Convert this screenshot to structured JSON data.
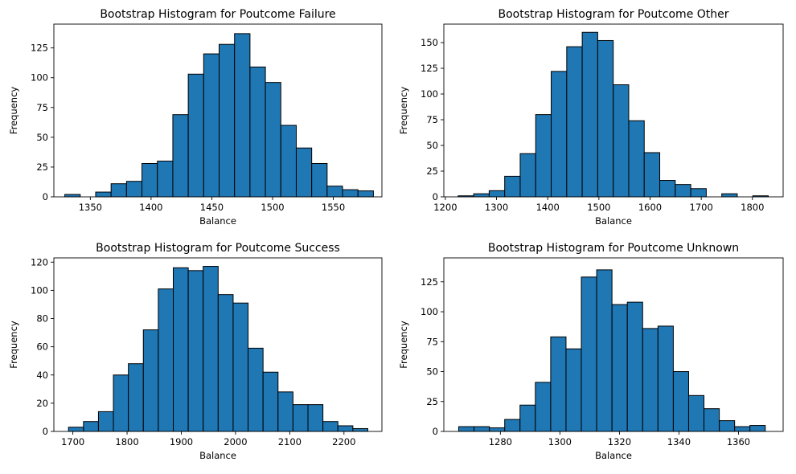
{
  "chart_data": [
    {
      "type": "bar",
      "title": "Bootstrap Histogram for Poutcome Failure",
      "xlabel": "Balance",
      "ylabel": "Frequency",
      "xlim": [
        1320,
        1590
      ],
      "ylim": [
        0,
        145
      ],
      "xticks": [
        1350,
        1400,
        1450,
        1500,
        1550
      ],
      "yticks": [
        0,
        25,
        50,
        75,
        100,
        125
      ],
      "bin_start": 1329,
      "bin_width": 12.7,
      "values": [
        2,
        0,
        4,
        11,
        13,
        28,
        30,
        69,
        103,
        120,
        128,
        137,
        109,
        96,
        60,
        41,
        28,
        9,
        6,
        5
      ],
      "bar_color": "#1f77b4"
    },
    {
      "type": "bar",
      "title": "Bootstrap Histogram for Poutcome Other",
      "xlabel": "Balance",
      "ylabel": "Frequency",
      "xlim": [
        1197,
        1860
      ],
      "ylim": [
        0,
        168
      ],
      "xticks": [
        1200,
        1300,
        1400,
        1500,
        1600,
        1700,
        1800
      ],
      "yticks": [
        0,
        25,
        50,
        75,
        100,
        125,
        150
      ],
      "bin_start": 1225,
      "bin_width": 30.3,
      "values": [
        1,
        3,
        6,
        20,
        42,
        80,
        122,
        146,
        160,
        152,
        109,
        74,
        43,
        16,
        12,
        8,
        0,
        3,
        0,
        1
      ],
      "bar_color": "#1f77b4"
    },
    {
      "type": "bar",
      "title": "Bootstrap Histogram for Poutcome Success",
      "xlabel": "Balance",
      "ylabel": "Frequency",
      "xlim": [
        1665,
        2270
      ],
      "ylim": [
        0,
        123
      ],
      "xticks": [
        1700,
        1800,
        1900,
        2000,
        2100,
        2200
      ],
      "yticks": [
        0,
        20,
        40,
        60,
        80,
        100,
        120
      ],
      "bin_start": 1692,
      "bin_width": 27.6,
      "values": [
        3,
        7,
        14,
        40,
        48,
        72,
        101,
        116,
        114,
        117,
        97,
        91,
        59,
        42,
        28,
        19,
        19,
        7,
        4,
        2
      ],
      "bar_color": "#1f77b4"
    },
    {
      "type": "bar",
      "title": "Bootstrap Histogram for Poutcome Unknown",
      "xlabel": "Balance",
      "ylabel": "Frequency",
      "xlim": [
        1261,
        1375
      ],
      "ylim": [
        0,
        145
      ],
      "xticks": [
        1280,
        1300,
        1320,
        1340,
        1360
      ],
      "yticks": [
        0,
        25,
        50,
        75,
        100,
        125
      ],
      "bin_start": 1266,
      "bin_width": 5.15,
      "values": [
        4,
        4,
        3,
        10,
        22,
        41,
        79,
        69,
        129,
        135,
        106,
        108,
        86,
        88,
        50,
        30,
        19,
        9,
        4,
        5
      ],
      "bar_color": "#1f77b4"
    }
  ]
}
